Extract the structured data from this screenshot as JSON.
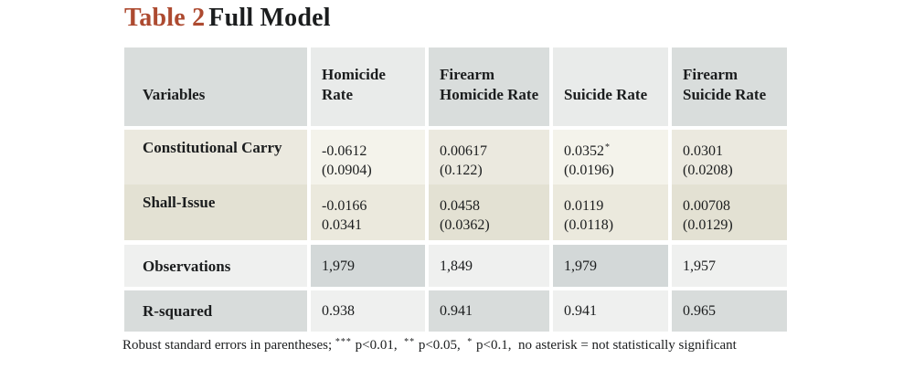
{
  "title": {
    "label": "Table 2",
    "rest": "Full Model"
  },
  "colors": {
    "title_accent": "#ad4a30",
    "text": "#1b1d1e",
    "header_dark": "#d9dddc",
    "header_light": "#e9ebea",
    "coef_row1_dark": "#ebe9df",
    "coef_row1_light": "#f4f3eb",
    "coef_row2_dark": "#e3e1d3",
    "coef_row2_light": "#ebe9dd",
    "stat_gray_dark": "#d3d8d8",
    "stat_gray_light": "#eff0ef",
    "background": "#ffffff"
  },
  "table": {
    "columns": [
      "Variables",
      "Homicide Rate",
      "Firearm Homicide Rate",
      "Suicide Rate",
      "Firearm Suicide Rate"
    ],
    "coef_rows": [
      {
        "label": "Constitutional Carry",
        "values": [
          {
            "est": "-0.0612",
            "se": "(0.0904)"
          },
          {
            "est": "0.00617",
            "se": "(0.122)"
          },
          {
            "est": "0.0352",
            "star": "*",
            "se": "(0.0196)"
          },
          {
            "est": "0.0301",
            "se": "(0.0208)"
          }
        ]
      },
      {
        "label": "Shall-Issue",
        "values": [
          {
            "est": "-0.0166",
            "se": "0.0341"
          },
          {
            "est": "0.0458",
            "se": "(0.0362)"
          },
          {
            "est": "0.0119",
            "se": "(0.0118)"
          },
          {
            "est": "0.00708",
            "se": "(0.0129)"
          }
        ]
      }
    ],
    "stat_rows": [
      {
        "label": "Observations",
        "values": [
          "1,979",
          "1,849",
          "1,979",
          "1,957"
        ]
      },
      {
        "label": "R-squared",
        "values": [
          "0.938",
          "0.941",
          "0.941",
          "0.965"
        ]
      }
    ]
  },
  "note": {
    "segments": [
      "Robust standard errors in parentheses; ",
      "***",
      " p<0.01,  ",
      "**",
      " p<0.05,  ",
      "*",
      " p<0.1,  no asterisk = not statistically significant"
    ]
  },
  "chart_data": {
    "type": "table",
    "title": "Table 2 Full Model",
    "columns": [
      "Variables",
      "Homicide Rate",
      "Firearm Homicide Rate",
      "Suicide Rate",
      "Firearm Suicide Rate"
    ],
    "rows": [
      [
        "Constitutional Carry",
        "-0.0612 (0.0904)",
        "0.00617 (0.122)",
        "0.0352* (0.0196)",
        "0.0301 (0.0208)"
      ],
      [
        "Shall-Issue",
        "-0.0166 0.0341",
        "0.0458 (0.0362)",
        "0.0119 (0.0118)",
        "0.00708 (0.0129)"
      ],
      [
        "Observations",
        "1,979",
        "1,849",
        "1,979",
        "1,957"
      ],
      [
        "R-squared",
        "0.938",
        "0.941",
        "0.941",
        "0.965"
      ]
    ],
    "note": "Robust standard errors in parentheses; *** p<0.01, ** p<0.05, * p<0.1, no asterisk = not statistically significant"
  }
}
